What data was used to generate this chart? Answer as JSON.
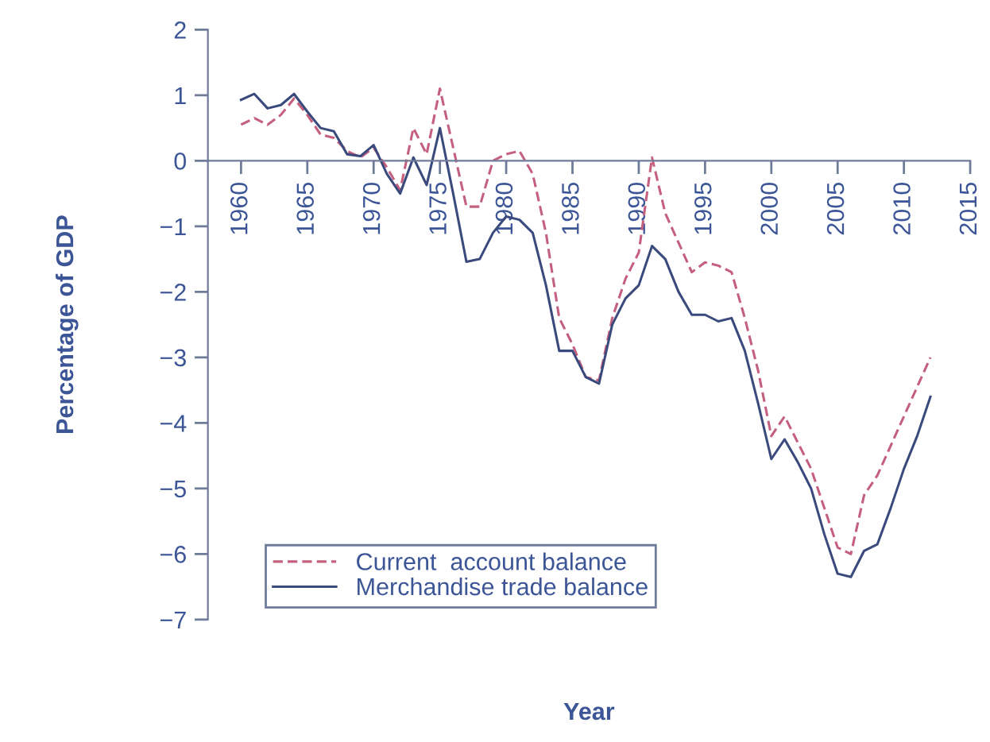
{
  "chart_data": {
    "type": "line",
    "xlabel": "Year",
    "ylabel": "Percentage of GDP",
    "x": [
      1960,
      1961,
      1962,
      1963,
      1964,
      1965,
      1966,
      1967,
      1968,
      1969,
      1970,
      1971,
      1972,
      1973,
      1974,
      1975,
      1976,
      1977,
      1978,
      1979,
      1980,
      1981,
      1982,
      1983,
      1984,
      1985,
      1986,
      1987,
      1988,
      1989,
      1990,
      1991,
      1992,
      1993,
      1994,
      1995,
      1996,
      1997,
      1998,
      1999,
      2000,
      2001,
      2002,
      2003,
      2004,
      2005,
      2006,
      2007,
      2008,
      2009,
      2010,
      2011,
      2012
    ],
    "series": [
      {
        "name": "Current  account balance",
        "color": "#c4607e",
        "line_style": "dashed",
        "values": [
          0.55,
          0.65,
          0.55,
          0.7,
          0.95,
          0.7,
          0.4,
          0.35,
          0.15,
          0.05,
          0.2,
          -0.1,
          -0.45,
          0.5,
          0.1,
          1.1,
          0.2,
          -0.7,
          -0.7,
          0.0,
          0.1,
          0.15,
          -0.2,
          -1.1,
          -2.4,
          -2.8,
          -3.3,
          -3.35,
          -2.4,
          -1.8,
          -1.4,
          0.05,
          -0.8,
          -1.25,
          -1.7,
          -1.55,
          -1.6,
          -1.7,
          -2.4,
          -3.2,
          -4.2,
          -3.9,
          -4.3,
          -4.7,
          -5.3,
          -5.9,
          -6.0,
          -5.1,
          -4.8,
          -4.35,
          -3.9,
          -3.45,
          -3.0
        ]
      },
      {
        "name": "Merchandise trade balance",
        "color": "#3a4a7c",
        "line_style": "solid",
        "values": [
          0.93,
          1.02,
          0.8,
          0.85,
          1.02,
          0.75,
          0.5,
          0.45,
          0.1,
          0.07,
          0.24,
          -0.2,
          -0.5,
          0.05,
          -0.37,
          0.5,
          -0.5,
          -1.54,
          -1.5,
          -1.1,
          -0.85,
          -0.9,
          -1.1,
          -1.9,
          -2.9,
          -2.9,
          -3.3,
          -3.4,
          -2.5,
          -2.1,
          -1.9,
          -1.3,
          -1.5,
          -2.0,
          -2.35,
          -2.35,
          -2.45,
          -2.4,
          -2.9,
          -3.7,
          -4.55,
          -4.25,
          -4.6,
          -5.0,
          -5.7,
          -6.3,
          -6.35,
          -5.95,
          -5.85,
          -5.3,
          -4.7,
          -4.2,
          -3.6
        ]
      }
    ],
    "xlim": [
      1957.5,
      2015
    ],
    "xticks": [
      1960,
      1965,
      1970,
      1975,
      1980,
      1985,
      1990,
      1995,
      2000,
      2005,
      2010,
      2015
    ],
    "ylim": [
      -7,
      2
    ],
    "yticks": [
      -7,
      -6,
      -5,
      -4,
      -3,
      -2,
      -1,
      0,
      1,
      2
    ],
    "grid": false,
    "legend": "bottom left",
    "marker": "none"
  }
}
